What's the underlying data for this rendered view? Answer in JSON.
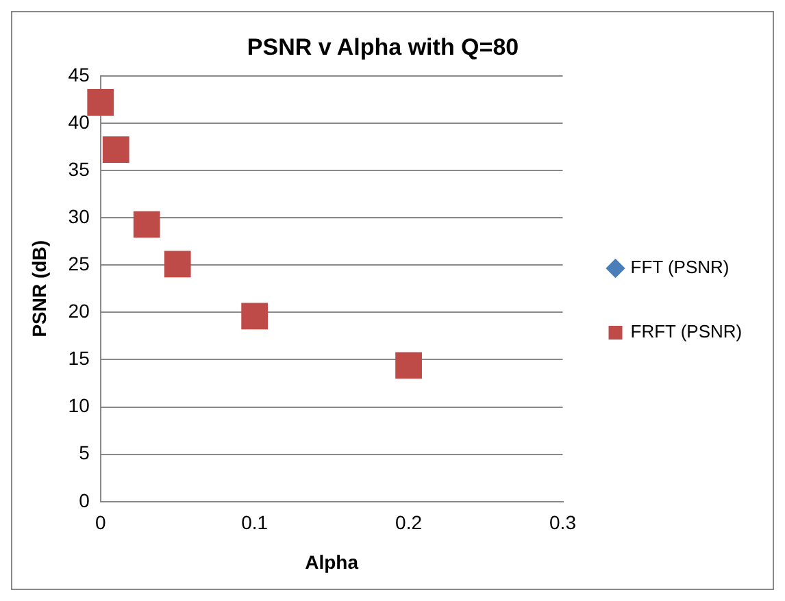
{
  "chart_data": {
    "type": "scatter",
    "title": "PSNR v Alpha with Q=80",
    "xlabel": "Alpha",
    "ylabel": "PSNR (dB)",
    "x": [
      0,
      0.01,
      0.03,
      0.05,
      0.1,
      0.2
    ],
    "series": [
      {
        "name": "FFT (PSNR)",
        "color": "#4a7ebb",
        "marker": "diamond",
        "values": [
          null,
          null,
          null,
          null,
          null,
          null
        ]
      },
      {
        "name": "FRFT (PSNR)",
        "color": "#be4b48",
        "marker": "square",
        "values": [
          42.2,
          37.2,
          29.3,
          25.1,
          19.6,
          14.4
        ]
      }
    ],
    "xlim": [
      0,
      0.3
    ],
    "xticks": [
      0,
      0.1,
      0.2,
      0.3
    ],
    "ylim": [
      0,
      45
    ],
    "yticks": [
      0,
      5,
      10,
      15,
      20,
      25,
      30,
      35,
      40,
      45
    ],
    "grid": "y",
    "legend": "right"
  }
}
